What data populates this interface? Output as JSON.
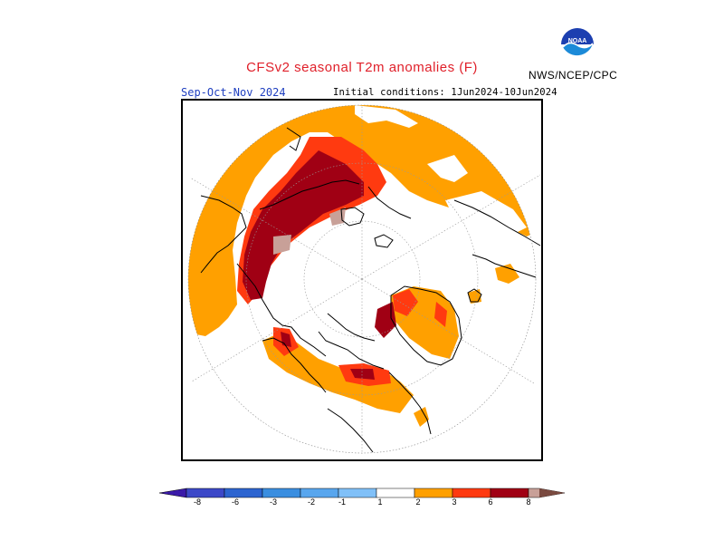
{
  "header": {
    "title": "CFSv2 seasonal T2m anomalies (F)",
    "agency": "NWS/NCEP/CPC",
    "logo_text": "NOAA"
  },
  "map": {
    "season": "Sep-Oct-Nov 2024",
    "initial_conditions": "Initial conditions: 1Jun2024-10Jun2024",
    "projection": "north-polar-stereographic"
  },
  "legend": {
    "ticks": [
      "-8",
      "-6",
      "-3",
      "-2",
      "-1",
      "1",
      "2",
      "3",
      "6",
      "8"
    ],
    "colors": [
      "#3a1aa8",
      "#3c5cd8",
      "#3a8ee0",
      "#58a6ee",
      "#80c0f8",
      "#ffffff",
      "#ffa000",
      "#ff7a1e",
      "#ff3a10",
      "#a00014",
      "#c8a098",
      "#7a4a40"
    ]
  }
}
